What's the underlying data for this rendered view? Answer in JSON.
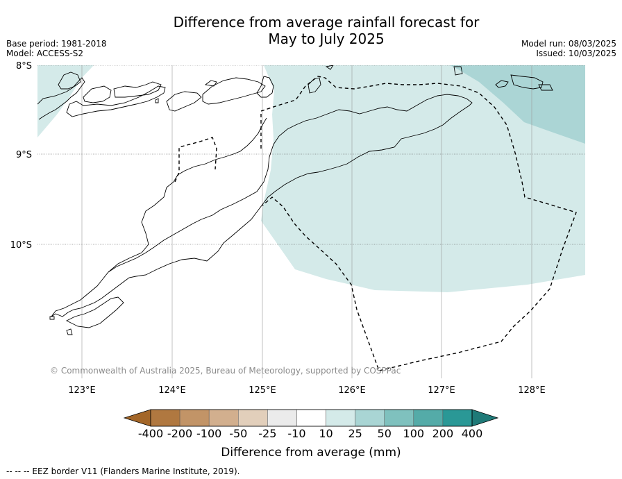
{
  "title_line1": "Difference from average rainfall forecast for",
  "title_line2": "May to July 2025",
  "base_period": "Base period: 1981-2018",
  "model": "Model: ACCESS-S2",
  "model_run": "Model run: 08/03/2025",
  "issued": "Issued: 10/03/2025",
  "lat_labels": [
    "8°S",
    "9°S",
    "10°S"
  ],
  "lon_labels": [
    "123°E",
    "124°E",
    "125°E",
    "126°E",
    "127°E",
    "128°E"
  ],
  "copyright": "© Commonwealth of Australia 2025, Bureau of Meteorology, supported by COSPPac",
  "colorbar": {
    "ticks": [
      "-400",
      "-200",
      "-100",
      "-50",
      "-25",
      "-10",
      "10",
      "25",
      "50",
      "100",
      "200",
      "400"
    ],
    "colors": [
      "#a36628",
      "#b07840",
      "#c29467",
      "#d2af8e",
      "#e2cfbb",
      "#ebebeb",
      "#ffffff",
      "#d4eae9",
      "#a9d5d4",
      "#7fc1be",
      "#54aba8",
      "#2a9896",
      "#1f7a78"
    ],
    "title": "Difference from average (mm)"
  },
  "footer": "--  --  -- EEZ border V11 (Flanders Marine Institute, 2019).",
  "colors": {
    "light_teal": "#d4eae9",
    "mid_teal": "#abd5d5",
    "coastline": "#000000"
  }
}
